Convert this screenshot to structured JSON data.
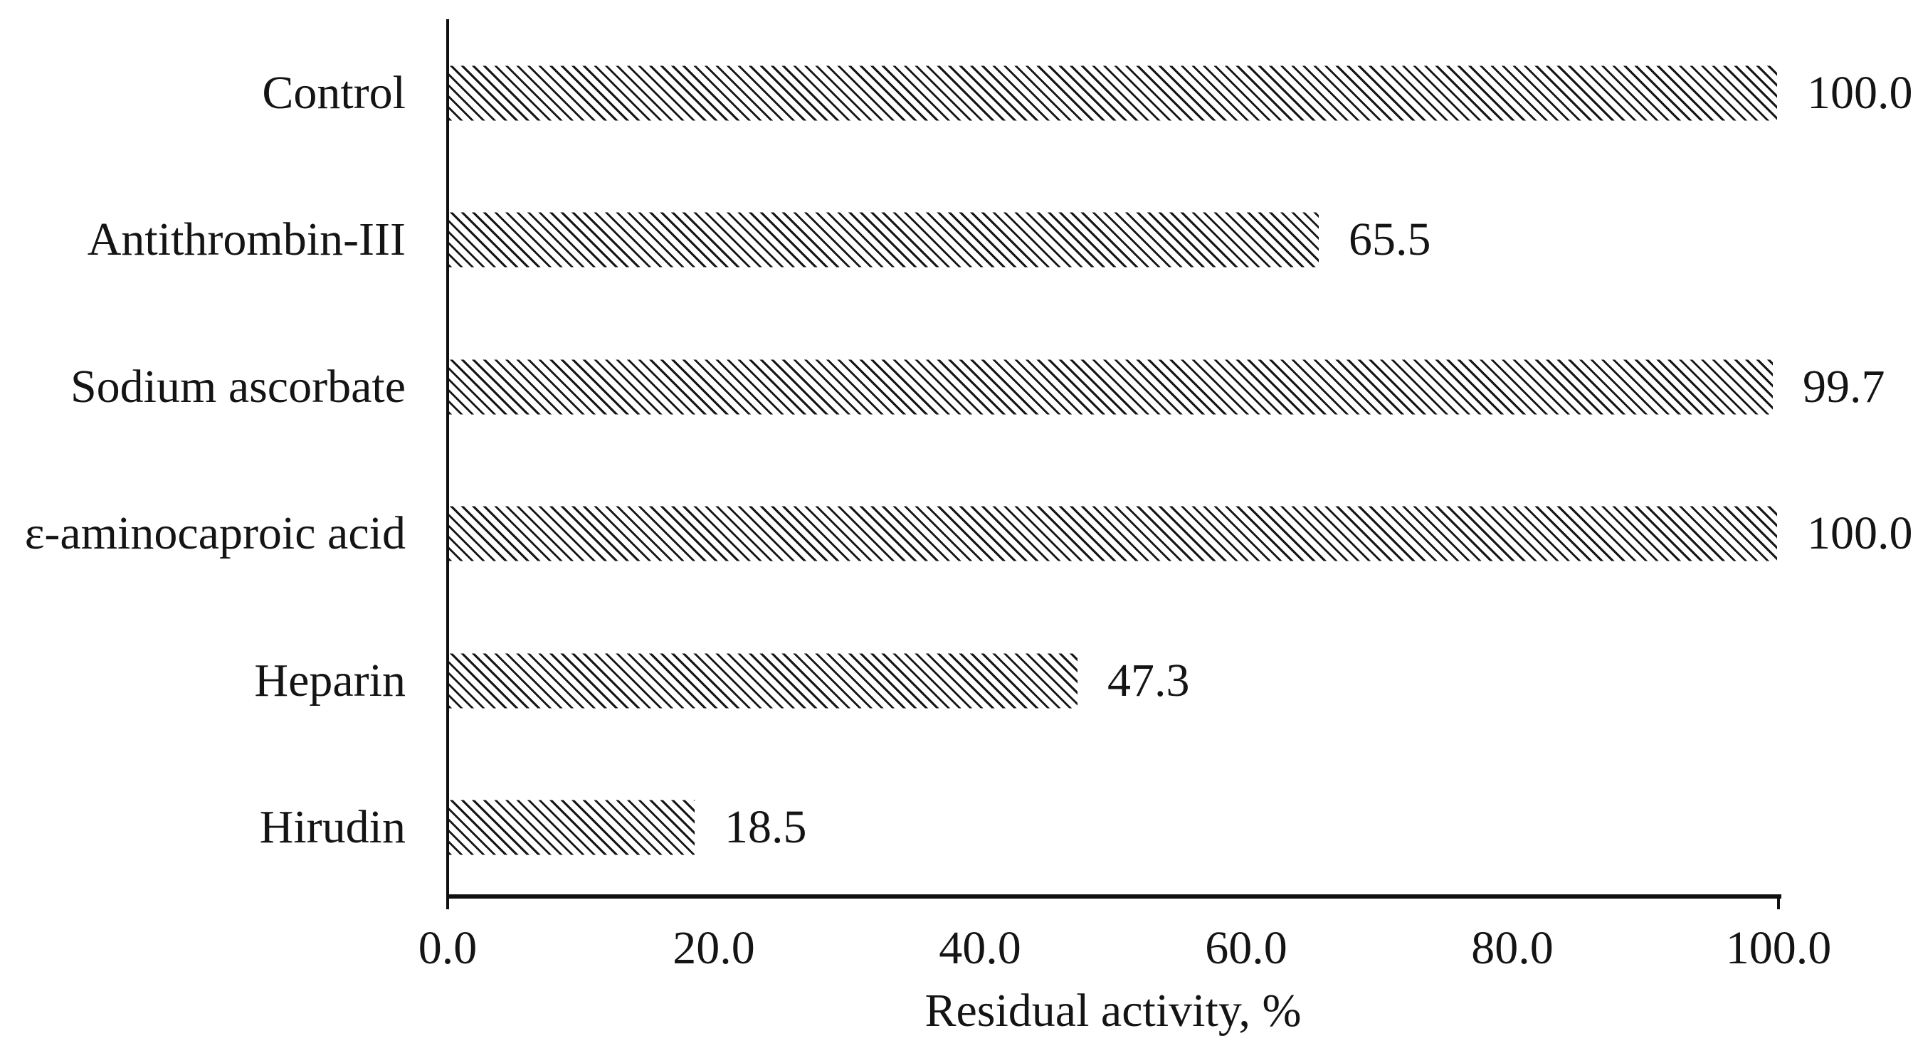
{
  "chart_data": {
    "type": "bar",
    "orientation": "horizontal",
    "title": "",
    "xlabel": "Residual activity, %",
    "ylabel": "",
    "categories": [
      "Control",
      "Antithrombin-III",
      "Sodium ascorbate",
      "ε-aminocaproic acid",
      "Heparin",
      "Hirudin"
    ],
    "values": [
      100.0,
      65.5,
      99.7,
      100.0,
      47.3,
      18.5
    ],
    "value_labels": [
      "100.0",
      "65.5",
      "99.7",
      "100.0",
      "47.3",
      "18.5"
    ],
    "x_ticks": [
      "0.0",
      "20.0",
      "40.0",
      "60.0",
      "80.0",
      "100.0"
    ],
    "xlim": [
      0,
      100
    ],
    "grid": "off",
    "legend": "none",
    "bar_style": "diagonal-hatch",
    "colors": {
      "ink": "#141414",
      "axis": "#101010",
      "background": "#ffffff"
    }
  }
}
